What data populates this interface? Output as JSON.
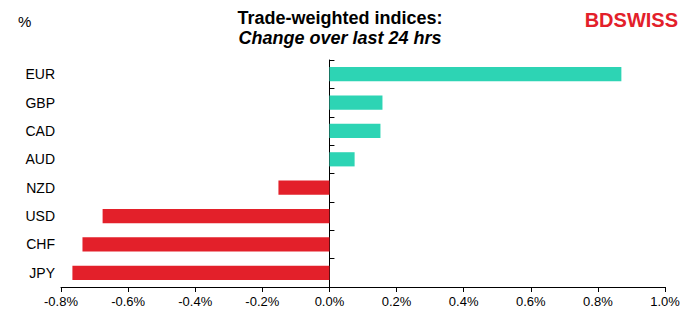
{
  "chart_data": {
    "type": "bar",
    "orientation": "horizontal",
    "title": "Trade-weighted indices:",
    "subtitle": "Change over last 24 hrs",
    "unit_label": "%",
    "logo": "BDSWISS",
    "categories": [
      "EUR",
      "GBP",
      "CAD",
      "AUD",
      "NZD",
      "USD",
      "CHF",
      "JPY"
    ],
    "values": [
      0.87,
      0.158,
      0.152,
      0.075,
      -0.152,
      -0.676,
      -0.736,
      -0.766
    ],
    "colors": [
      "#2dd4b4",
      "#2dd4b4",
      "#2dd4b4",
      "#2dd4b4",
      "#e3202a",
      "#e3202a",
      "#e3202a",
      "#e3202a"
    ],
    "xlim": [
      -0.8,
      1.0
    ],
    "xticks": [
      {
        "value": -0.8,
        "label": "-0.8%"
      },
      {
        "value": -0.6,
        "label": "-0.6%"
      },
      {
        "value": -0.4,
        "label": "-0.4%"
      },
      {
        "value": -0.2,
        "label": "-0.2%"
      },
      {
        "value": 0,
        "label": "0.0%"
      },
      {
        "value": 0.2,
        "label": "0.2%"
      },
      {
        "value": 0.4,
        "label": "0.4%"
      },
      {
        "value": 0.6,
        "label": "0.6%"
      },
      {
        "value": 0.8,
        "label": "0.8%"
      },
      {
        "value": 1.0,
        "label": "1.0%"
      }
    ],
    "grid": false
  }
}
